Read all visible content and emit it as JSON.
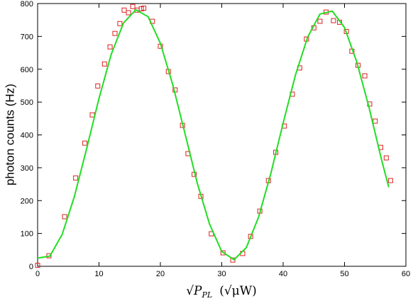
{
  "chart_data": {
    "type": "scatter",
    "y_label": "photon counts (Hz)",
    "x_label": {
      "main": "√P",
      "sub": "PL",
      "unit": "(√μW)"
    },
    "xlim": [
      0,
      60
    ],
    "xticks": [
      0,
      10,
      20,
      30,
      40,
      50,
      60
    ],
    "ylim": [
      0,
      800
    ],
    "yticks": [
      0,
      100,
      200,
      300,
      400,
      500,
      600,
      700,
      800
    ],
    "series": [
      {
        "type": "scatter",
        "color": "#e02020",
        "x": [
          0,
          1.85,
          4.4,
          6.2,
          7.7,
          8.9,
          9.8,
          10.9,
          11.8,
          12.6,
          13.4,
          14.1,
          14.8,
          15.5,
          16.2,
          16.9,
          17.3,
          18.7,
          20.0,
          21.3,
          22.4,
          23.6,
          24.5,
          25.5,
          26.6,
          28.3,
          30.2,
          31.8,
          33.4,
          34.7,
          36.2,
          37.6,
          38.8,
          40.2,
          41.5,
          42.7,
          43.8,
          45.0,
          46.0,
          47.0,
          48.2,
          49.2,
          50.3,
          51.2,
          52.2,
          53.3,
          54.1,
          55.0,
          55.9,
          56.8,
          57.5
        ],
        "values": [
          3,
          32,
          151,
          269,
          375,
          461,
          549,
          616,
          668,
          709,
          739,
          780,
          772,
          791,
          780,
          784,
          786,
          746,
          670,
          593,
          537,
          429,
          343,
          280,
          213,
          99,
          41,
          19,
          39,
          91,
          168,
          261,
          347,
          427,
          524,
          604,
          692,
          726,
          746,
          774,
          748,
          743,
          715,
          655,
          612,
          580,
          494,
          442,
          362,
          330,
          261
        ]
      },
      {
        "type": "line",
        "color": "#22dd22",
        "x": [
          0,
          2,
          4,
          6,
          8,
          10,
          12,
          14,
          16,
          18,
          20,
          22,
          24,
          26,
          28,
          30,
          32,
          34,
          36,
          38,
          40,
          42,
          44,
          46,
          48,
          50,
          52,
          54,
          56,
          57.2
        ],
        "values": [
          25,
          31,
          97,
          213,
          359,
          511,
          646,
          741,
          781,
          760,
          679,
          554,
          405,
          254,
          129,
          45,
          20,
          57,
          150,
          283,
          436,
          582,
          698,
          768,
          777,
          727,
          622,
          483,
          327,
          241
        ]
      }
    ]
  }
}
